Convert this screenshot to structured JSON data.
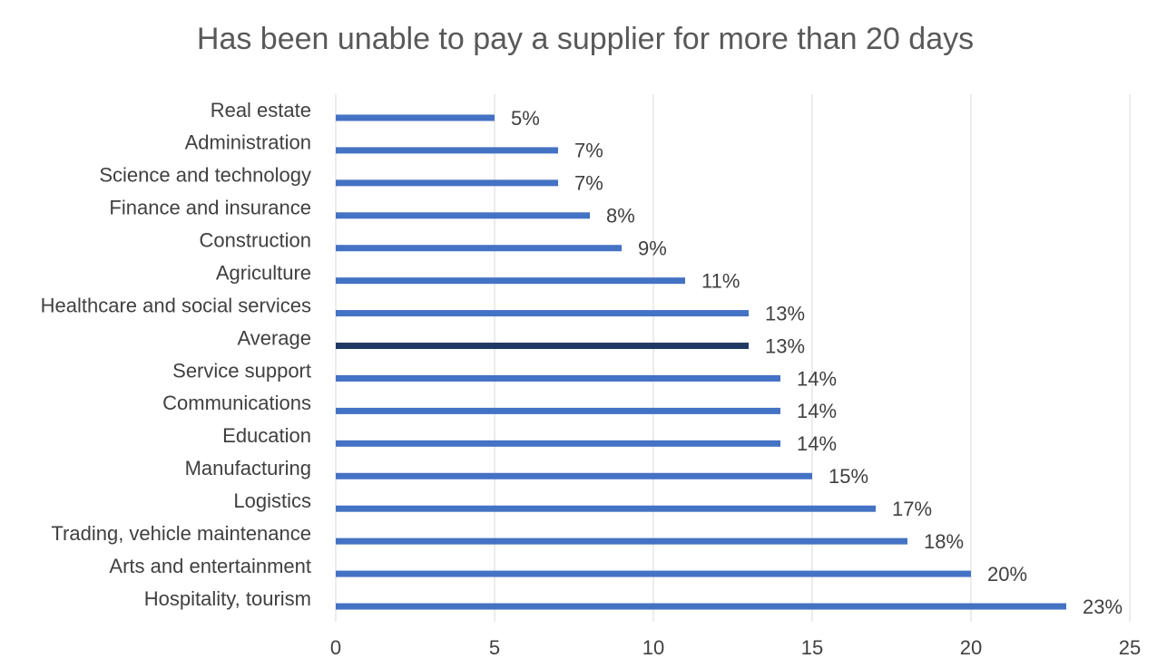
{
  "chart_data": {
    "type": "bar",
    "orientation": "horizontal",
    "title": "Has been unable to pay a supplier for more than 20 days",
    "categories": [
      "Real estate",
      "Administration",
      "Science and technology",
      "Finance and insurance",
      "Construction",
      "Agriculture",
      "Healthcare and social services",
      "Average",
      "Service support",
      "Communications",
      "Education",
      "Manufacturing",
      "Logistics",
      "Trading, vehicle maintenance",
      "Arts and entertainment",
      "Hospitality, tourism"
    ],
    "values": [
      5,
      7,
      7,
      8,
      9,
      11,
      13,
      13,
      14,
      14,
      14,
      15,
      17,
      18,
      20,
      23
    ],
    "value_labels": [
      "5%",
      "7%",
      "7%",
      "8%",
      "9%",
      "11%",
      "13%",
      "13%",
      "14%",
      "14%",
      "14%",
      "15%",
      "17%",
      "18%",
      "20%",
      "23%"
    ],
    "colors": [
      "#4472c4",
      "#4472c4",
      "#4472c4",
      "#4472c4",
      "#4472c4",
      "#4472c4",
      "#4472c4",
      "#203864",
      "#4472c4",
      "#4472c4",
      "#4472c4",
      "#4472c4",
      "#4472c4",
      "#4472c4",
      "#4472c4",
      "#4472c4"
    ],
    "xlim": [
      0,
      25
    ],
    "xticks": [
      0,
      5,
      10,
      15,
      20,
      25
    ],
    "grid": true
  }
}
